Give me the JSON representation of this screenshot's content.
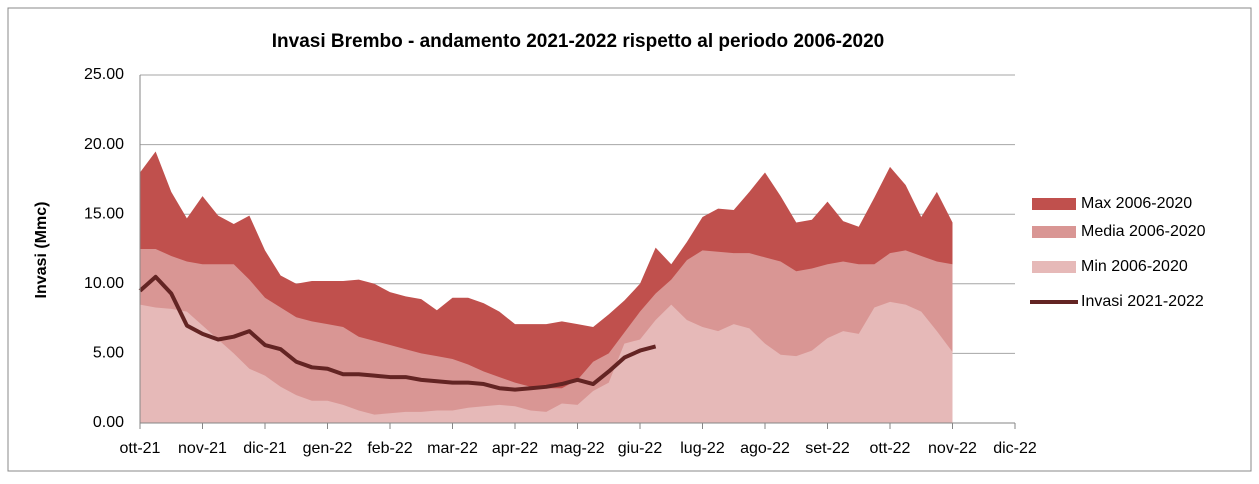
{
  "chart_data": {
    "type": "area",
    "title": "Invasi Brembo - andamento 2021-2022 rispetto al periodo 2006-2020",
    "ylabel": "Invasi (Mmc)",
    "x": [
      0,
      0.25,
      0.5,
      0.75,
      1,
      1.25,
      1.5,
      1.75,
      2,
      2.25,
      2.5,
      2.75,
      3,
      3.25,
      3.5,
      3.75,
      4,
      4.25,
      4.5,
      4.75,
      5,
      5.25,
      5.5,
      5.75,
      6,
      6.25,
      6.5,
      6.75,
      7,
      7.25,
      7.5,
      7.75,
      8,
      8.25,
      8.5,
      8.75,
      9,
      9.25,
      9.5,
      9.75,
      10,
      10.25,
      10.5,
      10.75,
      11,
      11.25,
      11.5,
      11.75,
      12,
      12.25,
      12.5,
      12.75,
      13
    ],
    "series": [
      {
        "name": "Max 2006-2020",
        "type": "area",
        "color": "#c0504d",
        "values": [
          18.0,
          19.5,
          16.6,
          14.7,
          16.3,
          14.9,
          14.3,
          14.9,
          12.4,
          10.6,
          10.0,
          10.2,
          10.2,
          10.2,
          10.3,
          10.0,
          9.4,
          9.1,
          8.9,
          8.1,
          9.0,
          9.0,
          8.6,
          8.0,
          7.1,
          7.1,
          7.1,
          7.3,
          7.1,
          6.9,
          7.8,
          8.8,
          10.0,
          12.6,
          11.4,
          13.0,
          14.8,
          15.4,
          15.3,
          16.6,
          18.0,
          16.3,
          14.4,
          14.6,
          15.9,
          14.5,
          14.1,
          16.2,
          18.4,
          17.1,
          14.8,
          16.6,
          14.4
        ]
      },
      {
        "name": "Media 2006-2020",
        "type": "area",
        "color": "#d99694",
        "values": [
          12.5,
          12.5,
          12.0,
          11.6,
          11.4,
          11.4,
          11.4,
          10.3,
          9.0,
          8.3,
          7.6,
          7.3,
          7.1,
          6.9,
          6.2,
          5.9,
          5.6,
          5.3,
          5.0,
          4.8,
          4.6,
          4.2,
          3.7,
          3.3,
          2.9,
          2.6,
          2.5,
          2.5,
          3.1,
          4.4,
          5.0,
          6.5,
          8.0,
          9.3,
          10.3,
          11.7,
          12.4,
          12.3,
          12.2,
          12.2,
          11.9,
          11.6,
          10.9,
          11.1,
          11.4,
          11.6,
          11.4,
          11.4,
          12.2,
          12.4,
          12.0,
          11.6,
          11.4
        ]
      },
      {
        "name": "Min 2006-2020",
        "type": "area",
        "color": "#e6b9b8",
        "values": [
          8.5,
          8.3,
          8.2,
          8.0,
          7.0,
          6.0,
          5.0,
          3.9,
          3.4,
          2.6,
          2.0,
          1.6,
          1.6,
          1.3,
          0.9,
          0.6,
          0.7,
          0.8,
          0.8,
          0.9,
          0.9,
          1.1,
          1.2,
          1.3,
          1.2,
          0.9,
          0.8,
          1.4,
          1.3,
          2.3,
          2.9,
          5.7,
          6.0,
          7.4,
          8.5,
          7.4,
          6.9,
          6.6,
          7.1,
          6.8,
          5.7,
          4.9,
          4.8,
          5.2,
          6.1,
          6.6,
          6.4,
          8.3,
          8.7,
          8.5,
          8.0,
          6.6,
          5.1
        ]
      },
      {
        "name": "Invasi 2021-2022",
        "type": "line",
        "color": "#632423",
        "values": [
          9.5,
          10.5,
          9.3,
          7.0,
          6.4,
          6.0,
          6.2,
          6.6,
          5.6,
          5.3,
          4.4,
          4.0,
          3.9,
          3.5,
          3.5,
          3.4,
          3.3,
          3.3,
          3.1,
          3.0,
          2.9,
          2.9,
          2.8,
          2.5,
          2.4,
          2.5,
          2.6,
          2.8,
          3.1,
          2.8,
          3.7,
          4.7,
          5.2,
          5.5,
          null,
          null,
          null,
          null,
          null,
          null,
          null,
          null,
          null,
          null,
          null,
          null,
          null,
          null,
          null,
          null,
          null,
          null,
          null
        ]
      }
    ],
    "xlim": [
      0,
      14
    ],
    "xticks": [
      {
        "value": 0,
        "label": "ott-21"
      },
      {
        "value": 1,
        "label": "nov-21"
      },
      {
        "value": 2,
        "label": "dic-21"
      },
      {
        "value": 3,
        "label": "gen-22"
      },
      {
        "value": 4,
        "label": "feb-22"
      },
      {
        "value": 5,
        "label": "mar-22"
      },
      {
        "value": 6,
        "label": "apr-22"
      },
      {
        "value": 7,
        "label": "mag-22"
      },
      {
        "value": 8,
        "label": "giu-22"
      },
      {
        "value": 9,
        "label": "lug-22"
      },
      {
        "value": 10,
        "label": "ago-22"
      },
      {
        "value": 11,
        "label": "set-22"
      },
      {
        "value": 12,
        "label": "ott-22"
      },
      {
        "value": 13,
        "label": "nov-22"
      },
      {
        "value": 14,
        "label": "dic-22"
      }
    ],
    "ylim": [
      0,
      25
    ],
    "yticks": [
      {
        "value": 0,
        "label": "0.00"
      },
      {
        "value": 5,
        "label": "5.00"
      },
      {
        "value": 10,
        "label": "10.00"
      },
      {
        "value": 15,
        "label": "15.00"
      },
      {
        "value": 20,
        "label": "20.00"
      },
      {
        "value": 25,
        "label": "25.00"
      }
    ],
    "grid": true,
    "legend": "right"
  }
}
